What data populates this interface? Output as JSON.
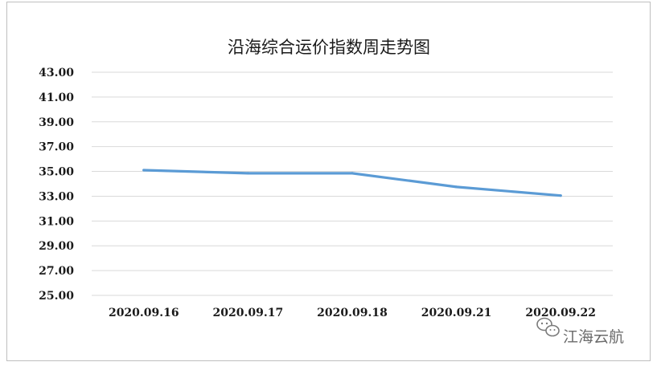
{
  "chart_data": {
    "type": "line",
    "title": "沿海综合运价指数周走势图",
    "xlabel": "",
    "ylabel": "",
    "categories": [
      "2020.09.16",
      "2020.09.17",
      "2020.09.18",
      "2020.09.21",
      "2020.09.22"
    ],
    "series": [
      {
        "values": [
          35.1,
          34.85,
          34.85,
          33.75,
          33.05
        ]
      }
    ],
    "ylim": [
      25,
      43
    ],
    "y_step": 2,
    "y_tick_labels": [
      "25.00",
      "27.00",
      "29.00",
      "31.00",
      "33.00",
      "35.00",
      "37.00",
      "39.00",
      "41.00",
      "43.00"
    ],
    "grid": true,
    "legend": "none",
    "colors": {
      "line": "#5b9bd5",
      "grid": "#d9d9d9",
      "border": "#bfbfbf"
    }
  },
  "watermark": {
    "icon": "wechat-icon",
    "text": "江海云航"
  }
}
